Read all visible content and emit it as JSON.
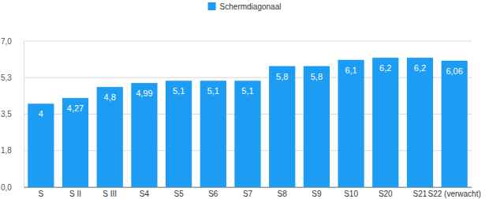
{
  "chart_data": {
    "type": "bar",
    "categories": [
      "S",
      "S II",
      "S III",
      "S4",
      "S5",
      "S6",
      "S7",
      "S8",
      "S9",
      "S10",
      "S20",
      "S21",
      "S22 (verwacht)"
    ],
    "series": [
      {
        "name": "Schermdiagonaal",
        "color": "#1c9cf2",
        "values": [
          4,
          4.27,
          4.8,
          4.99,
          5.1,
          5.1,
          5.1,
          5.8,
          5.8,
          6.1,
          6.2,
          6.2,
          6.06
        ],
        "value_labels": [
          "4",
          "4,27",
          "4,8",
          "4,99",
          "5,1",
          "5,1",
          "5,1",
          "5,8",
          "5,8",
          "6,1",
          "6,2",
          "6,2",
          "6,06"
        ]
      }
    ],
    "ylim": [
      0,
      7
    ],
    "yticks": [
      {
        "value": 0,
        "label": "0,0"
      },
      {
        "value": 1.75,
        "label": "1,8"
      },
      {
        "value": 3.5,
        "label": "3,5"
      },
      {
        "value": 5.25,
        "label": "5,3"
      },
      {
        "value": 7,
        "label": "7,0"
      }
    ],
    "grid": true,
    "legend": "top",
    "data_labels": true
  }
}
